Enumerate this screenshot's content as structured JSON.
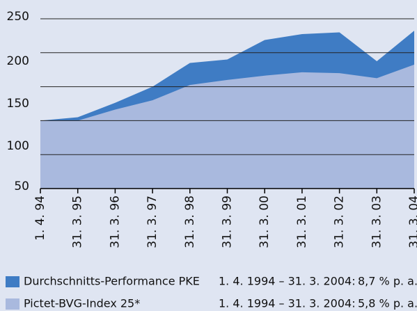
{
  "chart_data": {
    "type": "area",
    "categories": [
      "1. 4. 94",
      "31. 3. 95",
      "31. 3. 96",
      "31. 3. 97",
      "31. 3. 98",
      "31. 3. 99",
      "31. 3. 00",
      "31. 3. 01",
      "31. 3. 02",
      "31. 3. 03",
      "31. 3. 04"
    ],
    "series": [
      {
        "name": "Durchschnitts-Performance PKE",
        "color": "#3f7cc4",
        "period": "1. 4. 1994 – 31. 3. 2004:",
        "return": "8,7 % p. a.",
        "values": [
          130,
          134,
          151,
          170,
          198,
          202,
          225,
          232,
          234,
          200,
          236
        ]
      },
      {
        "name": "Pictet-BVG-Index 25*",
        "color": "#a9b9de",
        "period": "1. 4. 1994 – 31. 3. 2004:",
        "return": "5,8 % p. a.",
        "values": [
          130,
          130,
          143,
          154,
          172,
          178,
          183,
          187,
          186,
          180,
          196
        ]
      }
    ],
    "ylim": [
      50,
      250
    ],
    "yticks": [
      50,
      100,
      150,
      200,
      250
    ],
    "gridlines": [
      50,
      90,
      130,
      170,
      210,
      250
    ],
    "grid": true
  }
}
